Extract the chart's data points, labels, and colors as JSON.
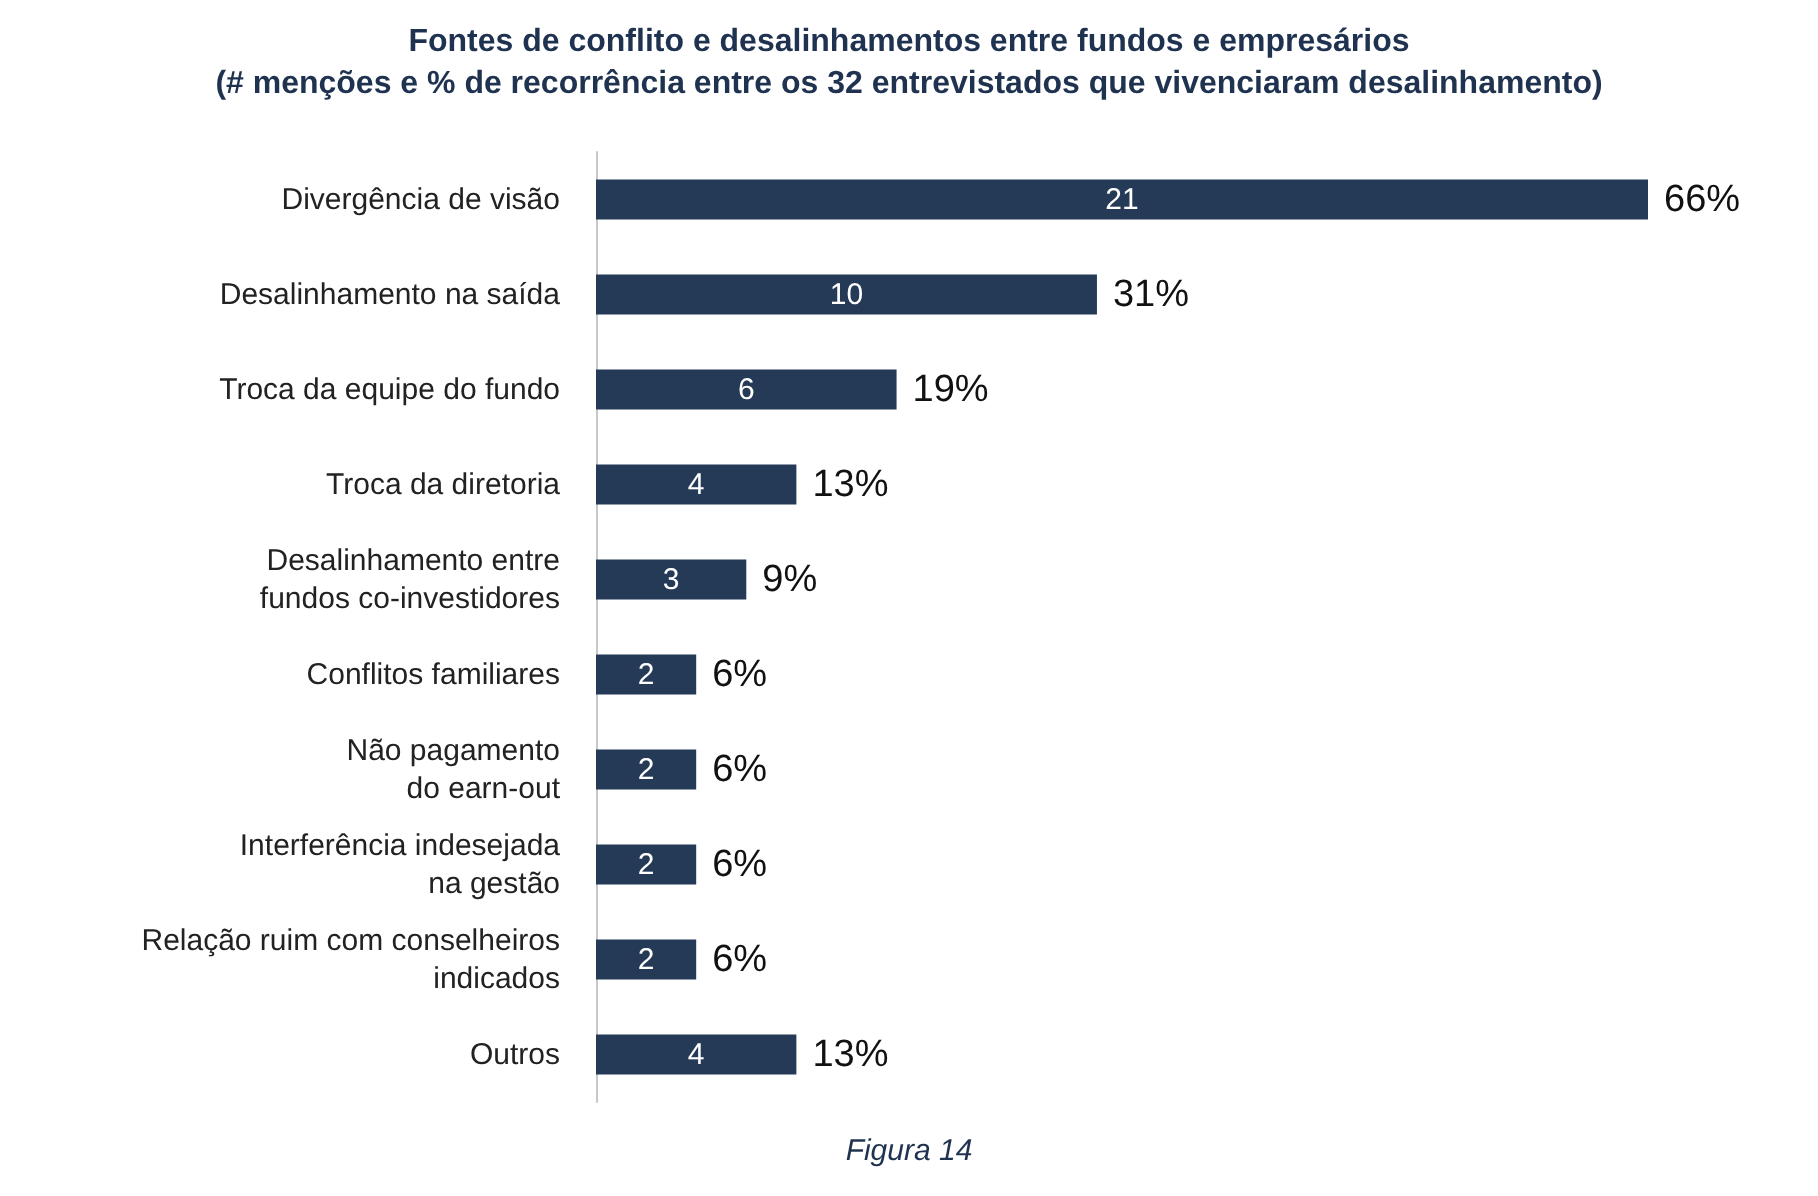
{
  "chart_data": {
    "type": "bar",
    "orientation": "horizontal",
    "title": "Fontes de conflito e desalinhamentos entre fundos e empresários",
    "subtitle": "(# menções e % de recorrência entre os 32 entrevistados que vivenciaram desalinhamento)",
    "categories": [
      "Divergência de visão",
      "Desalinhamento na saída",
      "Troca da equipe do fundo",
      "Troca da diretoria",
      "Desalinhamento entre\nfundos co-investidores",
      "Conflitos familiares",
      "Não pagamento\ndo earn-out",
      "Interferência indesejada\nna gestão",
      "Relação ruim com conselheiros\nindicados",
      "Outros"
    ],
    "values": [
      21,
      10,
      6,
      4,
      3,
      2,
      2,
      2,
      2,
      4
    ],
    "color": "#243a56",
    "data_labels": true,
    "tick_labels": "y",
    "annotations": [
      {
        "text": "66%",
        "x": 21,
        "y": "Divergência de visão"
      },
      {
        "text": "31%",
        "x": 10,
        "y": "Desalinhamento na saída"
      },
      {
        "text": "19%",
        "x": 6,
        "y": "Troca da equipe do fundo"
      },
      {
        "text": "13%",
        "x": 4,
        "y": "Troca da diretoria"
      },
      {
        "text": "9%",
        "x": 3,
        "y": "Desalinhamento entre\nfundos co-investidores"
      },
      {
        "text": "6%",
        "x": 2,
        "y": "Conflitos familiares"
      },
      {
        "text": "6%",
        "x": 2,
        "y": "Não pagamento\ndo earn-out"
      },
      {
        "text": "6%",
        "x": 2,
        "y": "Interferência indesejada\nna gestão"
      },
      {
        "text": "6%",
        "x": 2,
        "y": "Relação ruim com conselheiros\nindicados"
      },
      {
        "text": "13%",
        "x": 4,
        "y": "Outros"
      },
      "Figura 14"
    ]
  }
}
